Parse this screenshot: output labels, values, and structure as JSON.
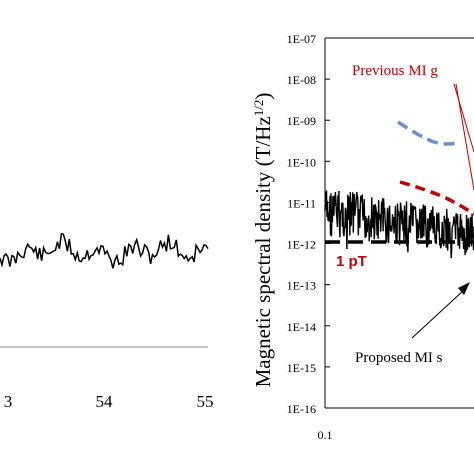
{
  "chart_data": [
    {
      "type": "line",
      "title": "",
      "xlabel": "",
      "ylabel": "",
      "x_tick_labels": [
        "3",
        "54",
        "55"
      ],
      "xlim": [
        52.95,
        55
      ],
      "series": [
        {
          "name": "",
          "x": [
            52.95,
            53.1,
            53.3,
            53.5,
            53.7,
            53.9,
            54.1,
            54.3,
            54.5,
            54.7,
            54.9,
            55.0
          ],
          "values": [
            0.2,
            0.45,
            0.35,
            0.5,
            0.3,
            0.4,
            0.25,
            0.45,
            0.3,
            0.1,
            0.35,
            0.45
          ]
        }
      ],
      "grid": false
    },
    {
      "type": "line",
      "title": "",
      "xlabel": "",
      "ylabel": "Magnetic spectral density (T/Hz",
      "ylabel_sup": "1/2",
      "ylabel_close": ")",
      "yscale": "log",
      "ylim": [
        1e-16,
        1e-07
      ],
      "y_tick_labels": [
        "1E-07",
        "1E-08",
        "1E-09",
        "1E-10",
        "1E-11",
        "1E-12",
        "1E-13",
        "1E-14",
        "1E-15",
        "1E-16"
      ],
      "x_tick_labels": [
        "0.1"
      ],
      "xscale": "log",
      "xlim": [
        0.1,
        1
      ],
      "annotations": [
        "Previous MI g",
        "1 pT",
        "Proposed MI s"
      ],
      "series": [
        {
          "name": "Previous MI g (blue dashed)",
          "color": "#6a8fd0",
          "x": [
            0.32,
            0.36,
            0.4,
            0.44
          ],
          "values": [
            3e-09,
            1.5e-09,
            6e-10,
            3.5e-10
          ]
        },
        {
          "name": "Previous MI g (red dashed)",
          "color": "#c00000",
          "x": [
            0.32,
            0.36,
            0.4,
            0.44
          ],
          "values": [
            4e-11,
            2.8e-11,
            2e-11,
            1.4e-11
          ]
        },
        {
          "name": "Proposed MI s (noise)",
          "color": "#000000",
          "x": [
            0.1,
            0.15,
            0.2,
            0.25,
            0.3,
            0.35,
            0.4,
            0.45
          ],
          "values": [
            4e-12,
            8e-12,
            5e-12,
            7e-12,
            4e-12,
            5e-12,
            3e-12,
            2.5e-12
          ]
        },
        {
          "name": "1 pT reference",
          "color": "#000000",
          "x": [
            0.1,
            0.45
          ],
          "values": [
            1e-12,
            1e-12
          ]
        }
      ]
    }
  ]
}
